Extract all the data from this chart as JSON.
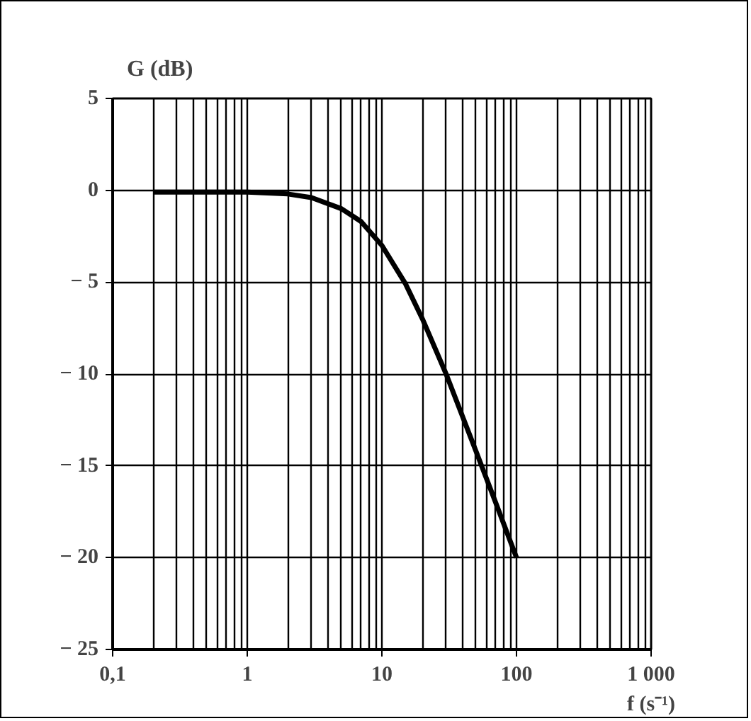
{
  "chart_data": {
    "type": "line",
    "xlabel": "f (s⁻¹)",
    "ylabel": "G (dB)",
    "log": "x",
    "grid": true,
    "line_style": "solid",
    "x": [
      0.2,
      0.5,
      1,
      2,
      3,
      5,
      7,
      10,
      15,
      20,
      30,
      50,
      70,
      100
    ],
    "series": [
      {
        "color": "#000000",
        "values": [
          -0.1,
          -0.1,
          -0.1,
          -0.2,
          -0.4,
          -1.0,
          -1.7,
          -3.0,
          -5.1,
          -7.0,
          -10.0,
          -14.2,
          -17.0,
          -20.0
        ]
      }
    ],
    "xlim": [
      0.1,
      1000
    ],
    "ylim": [
      -25,
      5
    ],
    "xticks": [
      {
        "value": 0.1,
        "label": "0,1"
      },
      1,
      10,
      100,
      {
        "value": 1000,
        "label": "1 000"
      }
    ],
    "yticks": [
      5,
      0,
      {
        "value": -5,
        "label": "− 5"
      },
      {
        "value": -10,
        "label": "− 10"
      },
      {
        "value": -15,
        "label": "− 15"
      },
      {
        "value": -20,
        "label": "− 20"
      },
      {
        "value": -25,
        "label": "− 25"
      }
    ]
  }
}
